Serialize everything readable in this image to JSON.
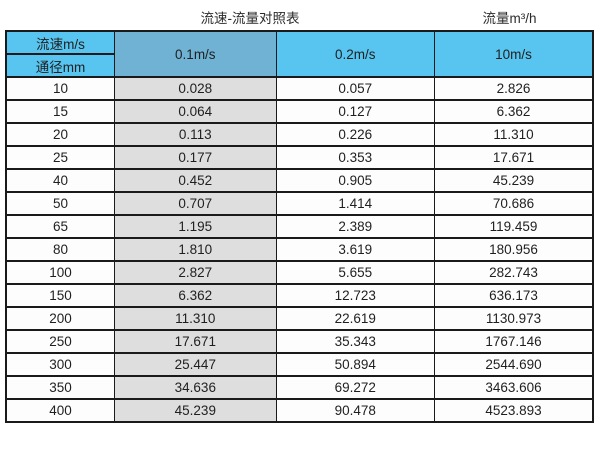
{
  "header": {
    "title": "流速-流量对照表",
    "unit_label": "流量m³/h"
  },
  "colors": {
    "header_blue": "#57C5F0",
    "highlight_column_blue": "#6FB2D3",
    "highlight_column_gray": "#DEDEDE",
    "border": "#1A1A1A"
  },
  "chart_data": {
    "type": "table",
    "title": "流速-流量对照表",
    "unit": "流量m³/h",
    "corner_top": "流速m/s",
    "corner_bottom": "通径mm",
    "columns": [
      "0.1m/s",
      "0.2m/s",
      "10m/s"
    ],
    "rows": [
      [
        "10",
        "0.028",
        "0.057",
        "2.826"
      ],
      [
        "15",
        "0.064",
        "0.127",
        "6.362"
      ],
      [
        "20",
        "0.113",
        "0.226",
        "11.310"
      ],
      [
        "25",
        "0.177",
        "0.353",
        "17.671"
      ],
      [
        "40",
        "0.452",
        "0.905",
        "45.239"
      ],
      [
        "50",
        "0.707",
        "1.414",
        "70.686"
      ],
      [
        "65",
        "1.195",
        "2.389",
        "119.459"
      ],
      [
        "80",
        "1.810",
        "3.619",
        "180.956"
      ],
      [
        "100",
        "2.827",
        "5.655",
        "282.743"
      ],
      [
        "150",
        "6.362",
        "12.723",
        "636.173"
      ],
      [
        "200",
        "11.310",
        "22.619",
        "1130.973"
      ],
      [
        "250",
        "17.671",
        "35.343",
        "1767.146"
      ],
      [
        "300",
        "25.447",
        "50.894",
        "2544.690"
      ],
      [
        "350",
        "34.636",
        "69.272",
        "3463.606"
      ],
      [
        "400",
        "45.239",
        "90.478",
        "4523.893"
      ]
    ]
  }
}
